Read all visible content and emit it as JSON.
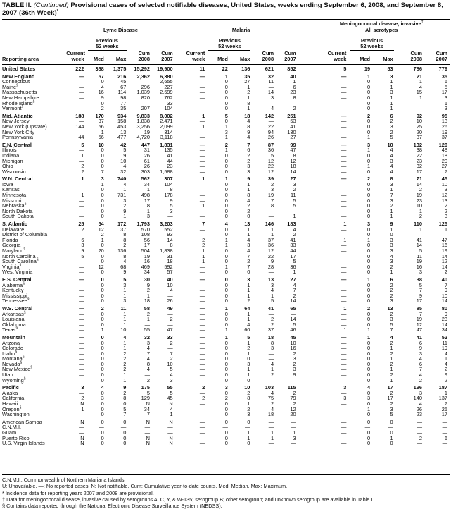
{
  "title": {
    "prefix": "TABLE II. ",
    "continued": "(Continued)",
    "text": " Provisional cases of selected notifiable diseases, United States, weeks ending September 6, 2008, and September 8, 2007 (36th Week)",
    "sup": "*"
  },
  "header": {
    "reporting_area": "Reporting area",
    "groups": [
      {
        "label": "Lyme Disease",
        "sup": ""
      },
      {
        "label": "Malaria",
        "sup": ""
      },
      {
        "label": "Meningococcal disease, invasive",
        "label2": "All serotypes",
        "sup": "†"
      }
    ],
    "current": "Current",
    "week": "week",
    "previous": "Previous",
    "weeks52": "52 weeks",
    "med": "Med",
    "max": "Max",
    "cum": "Cum",
    "y2008": "2008",
    "y2007": "2007"
  },
  "rows": [
    {
      "area": "United States",
      "bold": true,
      "v": [
        "222",
        "368",
        "1,375",
        "15,292",
        "19,900",
        "11",
        "22",
        "136",
        "621",
        "852",
        "5",
        "19",
        "53",
        "786",
        "779"
      ]
    },
    {
      "area": "New England",
      "bold": true,
      "gap": true,
      "v": [
        "—",
        "57",
        "216",
        "2,362",
        "6,380",
        "—",
        "1",
        "35",
        "32",
        "40",
        "—",
        "1",
        "3",
        "21",
        "35"
      ]
    },
    {
      "area": "Connecticut",
      "v": [
        "—",
        "0",
        "45",
        "—",
        "2,655",
        "—",
        "0",
        "27",
        "11",
        "1",
        "—",
        "0",
        "1",
        "1",
        "6"
      ]
    },
    {
      "area": "Maine",
      "sup": "§",
      "v": [
        "—",
        "4",
        "67",
        "296",
        "227",
        "—",
        "0",
        "1",
        "—",
        "6",
        "—",
        "0",
        "1",
        "4",
        "5"
      ]
    },
    {
      "area": "Massachusetts",
      "v": [
        "—",
        "16",
        "114",
        "1,039",
        "2,599",
        "—",
        "0",
        "2",
        "14",
        "23",
        "—",
        "0",
        "3",
        "15",
        "17"
      ]
    },
    {
      "area": "New Hampshire",
      "v": [
        "—",
        "9",
        "98",
        "820",
        "762",
        "—",
        "0",
        "1",
        "3",
        "8",
        "—",
        "0",
        "1",
        "1",
        "3"
      ]
    },
    {
      "area": "Rhode Island",
      "sup": "§",
      "v": [
        "—",
        "0",
        "77",
        "—",
        "33",
        "—",
        "0",
        "8",
        "—",
        "—",
        "—",
        "0",
        "1",
        "—",
        "1"
      ]
    },
    {
      "area": "Vermont",
      "sup": "§",
      "v": [
        "—",
        "2",
        "35",
        "207",
        "104",
        "—",
        "0",
        "1",
        "4",
        "2",
        "—",
        "0",
        "1",
        "—",
        "3"
      ]
    },
    {
      "area": "Mid. Atlantic",
      "bold": true,
      "gap": true,
      "v": [
        "188",
        "170",
        "934",
        "9,833",
        "8,002",
        "1",
        "5",
        "18",
        "142",
        "251",
        "—",
        "2",
        "6",
        "92",
        "95"
      ]
    },
    {
      "area": "New Jersey",
      "v": [
        "—",
        "37",
        "158",
        "1,838",
        "2,471",
        "—",
        "0",
        "4",
        "—",
        "53",
        "—",
        "0",
        "2",
        "10",
        "13"
      ]
    },
    {
      "area": "New York (Upstate)",
      "v": [
        "144",
        "56",
        "453",
        "3,256",
        "2,099",
        "1",
        "1",
        "8",
        "22",
        "41",
        "—",
        "0",
        "3",
        "25",
        "26"
      ]
    },
    {
      "area": "New York City",
      "v": [
        "—",
        "1",
        "13",
        "19",
        "314",
        "—",
        "3",
        "9",
        "94",
        "130",
        "—",
        "0",
        "2",
        "20",
        "19"
      ]
    },
    {
      "area": "Pennsylvania",
      "v": [
        "44",
        "56",
        "477",
        "4,720",
        "3,118",
        "—",
        "1",
        "4",
        "26",
        "27",
        "—",
        "1",
        "5",
        "37",
        "37"
      ]
    },
    {
      "area": "E.N. Central",
      "bold": true,
      "gap": true,
      "v": [
        "5",
        "10",
        "42",
        "447",
        "1,831",
        "—",
        "2",
        "7",
        "87",
        "99",
        "—",
        "3",
        "10",
        "132",
        "120"
      ]
    },
    {
      "area": "Illinois",
      "v": [
        "—",
        "0",
        "5",
        "31",
        "135",
        "—",
        "1",
        "6",
        "36",
        "47",
        "—",
        "1",
        "4",
        "38",
        "48"
      ]
    },
    {
      "area": "Indiana",
      "v": [
        "1",
        "0",
        "9",
        "26",
        "41",
        "—",
        "0",
        "2",
        "5",
        "8",
        "—",
        "0",
        "4",
        "22",
        "18"
      ]
    },
    {
      "area": "Michigan",
      "v": [
        "—",
        "0",
        "10",
        "61",
        "44",
        "—",
        "0",
        "2",
        "12",
        "12",
        "—",
        "0",
        "3",
        "23",
        "20"
      ]
    },
    {
      "area": "Ohio",
      "v": [
        "2",
        "0",
        "4",
        "26",
        "23",
        "—",
        "0",
        "3",
        "22",
        "18",
        "—",
        "1",
        "4",
        "32",
        "27"
      ]
    },
    {
      "area": "Wisconsin",
      "v": [
        "2",
        "7",
        "32",
        "303",
        "1,588",
        "—",
        "0",
        "3",
        "12",
        "14",
        "—",
        "0",
        "4",
        "17",
        "7"
      ]
    },
    {
      "area": "W.N. Central",
      "bold": true,
      "gap": true,
      "v": [
        "1",
        "3",
        "740",
        "562",
        "307",
        "1",
        "1",
        "9",
        "39",
        "27",
        "—",
        "2",
        "8",
        "71",
        "45"
      ]
    },
    {
      "area": "Iowa",
      "v": [
        "—",
        "1",
        "4",
        "34",
        "104",
        "—",
        "0",
        "1",
        "2",
        "3",
        "—",
        "0",
        "3",
        "14",
        "10"
      ]
    },
    {
      "area": "Kansas",
      "v": [
        "—",
        "0",
        "1",
        "1",
        "8",
        "—",
        "0",
        "1",
        "3",
        "2",
        "—",
        "0",
        "1",
        "2",
        "3"
      ]
    },
    {
      "area": "Minnesota",
      "v": [
        "1",
        "0",
        "731",
        "498",
        "178",
        "—",
        "0",
        "8",
        "19",
        "11",
        "—",
        "0",
        "7",
        "19",
        "12"
      ]
    },
    {
      "area": "Missouri",
      "v": [
        "—",
        "0",
        "3",
        "17",
        "9",
        "—",
        "0",
        "4",
        "7",
        "5",
        "—",
        "0",
        "3",
        "23",
        "13"
      ]
    },
    {
      "area": "Nebraska",
      "sup": "§",
      "v": [
        "—",
        "0",
        "2",
        "8",
        "5",
        "1",
        "0",
        "2",
        "8",
        "5",
        "—",
        "0",
        "2",
        "10",
        "2"
      ]
    },
    {
      "area": "North Dakota",
      "v": [
        "—",
        "0",
        "9",
        "1",
        "3",
        "—",
        "0",
        "2",
        "—",
        "—",
        "—",
        "0",
        "1",
        "1",
        "2"
      ]
    },
    {
      "area": "South Dakota",
      "v": [
        "—",
        "0",
        "1",
        "3",
        "—",
        "—",
        "0",
        "0",
        "—",
        "1",
        "—",
        "0",
        "1",
        "2",
        "3"
      ]
    },
    {
      "area": "S. Atlantic",
      "bold": true,
      "gap": true,
      "v": [
        "25",
        "54",
        "172",
        "1,793",
        "3,203",
        "7",
        "4",
        "13",
        "146",
        "183",
        "1",
        "3",
        "9",
        "110",
        "125"
      ]
    },
    {
      "area": "Delaware",
      "v": [
        "2",
        "12",
        "37",
        "570",
        "552",
        "—",
        "0",
        "1",
        "1",
        "4",
        "—",
        "0",
        "1",
        "1",
        "1"
      ]
    },
    {
      "area": "District of Columbia",
      "v": [
        "—",
        "2",
        "8",
        "108",
        "93",
        "—",
        "0",
        "1",
        "1",
        "2",
        "—",
        "0",
        "0",
        "—",
        "—"
      ]
    },
    {
      "area": "Florida",
      "v": [
        "6",
        "1",
        "8",
        "56",
        "14",
        "2",
        "1",
        "4",
        "37",
        "41",
        "1",
        "1",
        "3",
        "41",
        "47"
      ]
    },
    {
      "area": "Georgia",
      "v": [
        "3",
        "0",
        "2",
        "17",
        "8",
        "2",
        "1",
        "3",
        "36",
        "33",
        "—",
        "0",
        "3",
        "14",
        "16"
      ]
    },
    {
      "area": "Maryland",
      "sup": "§",
      "v": [
        "9",
        "20",
        "136",
        "504",
        "1,838",
        "1",
        "0",
        "4",
        "12",
        "44",
        "—",
        "0",
        "3",
        "5",
        "19"
      ]
    },
    {
      "area": "North Carolina",
      "v": [
        "5",
        "0",
        "8",
        "19",
        "31",
        "1",
        "0",
        "7",
        "22",
        "17",
        "—",
        "0",
        "4",
        "11",
        "14"
      ]
    },
    {
      "area": "South Carolina",
      "sup": "§",
      "v": [
        "—",
        "0",
        "4",
        "16",
        "18",
        "1",
        "0",
        "2",
        "9",
        "5",
        "—",
        "0",
        "3",
        "19",
        "12"
      ]
    },
    {
      "area": "Virginia",
      "sup": "§",
      "v": [
        "—",
        "12",
        "68",
        "469",
        "592",
        "—",
        "1",
        "7",
        "28",
        "36",
        "—",
        "0",
        "2",
        "16",
        "14"
      ]
    },
    {
      "area": "West Virginia",
      "v": [
        "—",
        "0",
        "9",
        "34",
        "57",
        "—",
        "0",
        "0",
        "—",
        "1",
        "—",
        "0",
        "1",
        "3",
        "2"
      ]
    },
    {
      "area": "E.S. Central",
      "bold": true,
      "gap": true,
      "v": [
        "—",
        "0",
        "5",
        "30",
        "40",
        "—",
        "0",
        "3",
        "13",
        "27",
        "—",
        "1",
        "6",
        "38",
        "40"
      ]
    },
    {
      "area": "Alabama",
      "sup": "§",
      "v": [
        "—",
        "0",
        "3",
        "9",
        "10",
        "—",
        "0",
        "1",
        "3",
        "4",
        "—",
        "0",
        "2",
        "5",
        "7"
      ]
    },
    {
      "area": "Kentucky",
      "v": [
        "—",
        "0",
        "1",
        "2",
        "4",
        "—",
        "0",
        "1",
        "4",
        "7",
        "—",
        "0",
        "2",
        "7",
        "9"
      ]
    },
    {
      "area": "Mississippi",
      "v": [
        "—",
        "0",
        "1",
        "1",
        "—",
        "—",
        "0",
        "1",
        "1",
        "2",
        "—",
        "0",
        "2",
        "9",
        "10"
      ]
    },
    {
      "area": "Tennessee",
      "sup": "§",
      "v": [
        "—",
        "0",
        "3",
        "18",
        "26",
        "—",
        "0",
        "2",
        "5",
        "14",
        "—",
        "0",
        "3",
        "17",
        "14"
      ]
    },
    {
      "area": "W.S. Central",
      "bold": true,
      "gap": true,
      "v": [
        "—",
        "2",
        "11",
        "58",
        "49",
        "—",
        "1",
        "64",
        "41",
        "65",
        "1",
        "2",
        "13",
        "85",
        "80"
      ]
    },
    {
      "area": "Arkansas",
      "sup": "§",
      "v": [
        "—",
        "0",
        "1",
        "2",
        "—",
        "—",
        "0",
        "1",
        "—",
        "—",
        "—",
        "0",
        "2",
        "7",
        "9"
      ]
    },
    {
      "area": "Louisiana",
      "v": [
        "—",
        "0",
        "1",
        "1",
        "2",
        "—",
        "0",
        "1",
        "2",
        "14",
        "—",
        "0",
        "3",
        "19",
        "23"
      ]
    },
    {
      "area": "Oklahoma",
      "v": [
        "—",
        "0",
        "1",
        "—",
        "—",
        "—",
        "0",
        "4",
        "2",
        "5",
        "—",
        "0",
        "5",
        "12",
        "14"
      ]
    },
    {
      "area": "Texas",
      "sup": "§",
      "v": [
        "—",
        "1",
        "10",
        "55",
        "47",
        "—",
        "1",
        "60",
        "37",
        "46",
        "1",
        "1",
        "7",
        "47",
        "34"
      ]
    },
    {
      "area": "Mountain",
      "bold": true,
      "gap": true,
      "v": [
        "—",
        "0",
        "4",
        "32",
        "33",
        "—",
        "1",
        "5",
        "18",
        "45",
        "—",
        "1",
        "4",
        "41",
        "52"
      ]
    },
    {
      "area": "Arizona",
      "v": [
        "—",
        "0",
        "1",
        "3",
        "2",
        "—",
        "0",
        "1",
        "8",
        "10",
        "—",
        "0",
        "2",
        "6",
        "11"
      ]
    },
    {
      "area": "Colorado",
      "v": [
        "—",
        "0",
        "1",
        "4",
        "—",
        "—",
        "0",
        "2",
        "3",
        "16",
        "—",
        "0",
        "1",
        "9",
        "19"
      ]
    },
    {
      "area": "Idaho",
      "sup": "§",
      "v": [
        "—",
        "0",
        "2",
        "7",
        "7",
        "—",
        "0",
        "1",
        "—",
        "2",
        "—",
        "0",
        "2",
        "3",
        "4"
      ]
    },
    {
      "area": "Montana",
      "sup": "§",
      "v": [
        "—",
        "0",
        "2",
        "4",
        "2",
        "—",
        "0",
        "0",
        "—",
        "3",
        "—",
        "0",
        "1",
        "4",
        "1"
      ]
    },
    {
      "area": "Nevada",
      "sup": "§",
      "v": [
        "—",
        "0",
        "2",
        "8",
        "10",
        "—",
        "0",
        "3",
        "4",
        "2",
        "—",
        "0",
        "2",
        "6",
        "4"
      ]
    },
    {
      "area": "New Mexico",
      "sup": "§",
      "v": [
        "—",
        "0",
        "2",
        "4",
        "5",
        "—",
        "0",
        "1",
        "1",
        "3",
        "—",
        "0",
        "1",
        "7",
        "2"
      ]
    },
    {
      "area": "Utah",
      "v": [
        "—",
        "0",
        "1",
        "—",
        "4",
        "—",
        "0",
        "1",
        "2",
        "9",
        "—",
        "0",
        "2",
        "4",
        "9"
      ]
    },
    {
      "area": "Wyoming",
      "sup": "§",
      "v": [
        "—",
        "0",
        "1",
        "2",
        "3",
        "—",
        "0",
        "0",
        "—",
        "—",
        "—",
        "0",
        "1",
        "2",
        "2"
      ]
    },
    {
      "area": "Pacific",
      "bold": true,
      "gap": true,
      "v": [
        "3",
        "4",
        "9",
        "175",
        "55",
        "2",
        "3",
        "10",
        "103",
        "115",
        "3",
        "4",
        "17",
        "196",
        "187"
      ]
    },
    {
      "area": "Alaska",
      "v": [
        "—",
        "0",
        "2",
        "5",
        "5",
        "—",
        "0",
        "2",
        "4",
        "2",
        "—",
        "0",
        "2",
        "3",
        "1"
      ]
    },
    {
      "area": "California",
      "v": [
        "2",
        "3",
        "8",
        "129",
        "45",
        "2",
        "2",
        "8",
        "75",
        "79",
        "3",
        "3",
        "17",
        "140",
        "137"
      ]
    },
    {
      "area": "Hawaii",
      "v": [
        "N",
        "0",
        "0",
        "N",
        "N",
        "—",
        "0",
        "1",
        "2",
        "2",
        "—",
        "0",
        "2",
        "4",
        "7"
      ]
    },
    {
      "area": "Oregon",
      "sup": "§",
      "v": [
        "1",
        "0",
        "5",
        "34",
        "4",
        "—",
        "0",
        "2",
        "4",
        "12",
        "—",
        "1",
        "3",
        "26",
        "25"
      ]
    },
    {
      "area": "Washington",
      "v": [
        "—",
        "0",
        "7",
        "7",
        "1",
        "—",
        "0",
        "3",
        "18",
        "20",
        "—",
        "0",
        "5",
        "23",
        "17"
      ]
    },
    {
      "area": "American Samoa",
      "gap": true,
      "v": [
        "N",
        "0",
        "0",
        "N",
        "N",
        "—",
        "0",
        "0",
        "—",
        "—",
        "—",
        "0",
        "0",
        "—",
        "—"
      ]
    },
    {
      "area": "C.N.M.I.",
      "v": [
        "—",
        "—",
        "—",
        "—",
        "—",
        "—",
        "—",
        "—",
        "—",
        "—",
        "—",
        "—",
        "—",
        "—",
        "—"
      ]
    },
    {
      "area": "Guam",
      "v": [
        "—",
        "0",
        "0",
        "—",
        "—",
        "—",
        "0",
        "1",
        "1",
        "1",
        "—",
        "0",
        "0",
        "—",
        "—"
      ]
    },
    {
      "area": "Puerto Rico",
      "v": [
        "N",
        "0",
        "0",
        "N",
        "N",
        "—",
        "0",
        "1",
        "1",
        "3",
        "—",
        "0",
        "1",
        "2",
        "6"
      ]
    },
    {
      "area": "U.S. Virgin Islands",
      "v": [
        "N",
        "0",
        "0",
        "N",
        "N",
        "—",
        "0",
        "0",
        "—",
        "—",
        "—",
        "0",
        "0",
        "—",
        "—"
      ]
    }
  ],
  "footnotes": [
    "C.N.M.I.: Commonwealth of Northern Mariana Islands.",
    "U: Unavailable.    —: No reported cases.    N: Not notifiable.    Cum: Cumulative year-to-date counts.    Med: Median.    Max: Maximum.",
    "* Incidence data for reporting years 2007 and 2008 are provisional.",
    "† Data for meningococcal disease, invasive caused by serogroups A, C, Y, & W-135; serogroup B; other serogroup; and unknown serogroup are available in Table I.",
    "§ Contains data reported through the National Electronic Disease Surveillance System (NEDSS)."
  ]
}
